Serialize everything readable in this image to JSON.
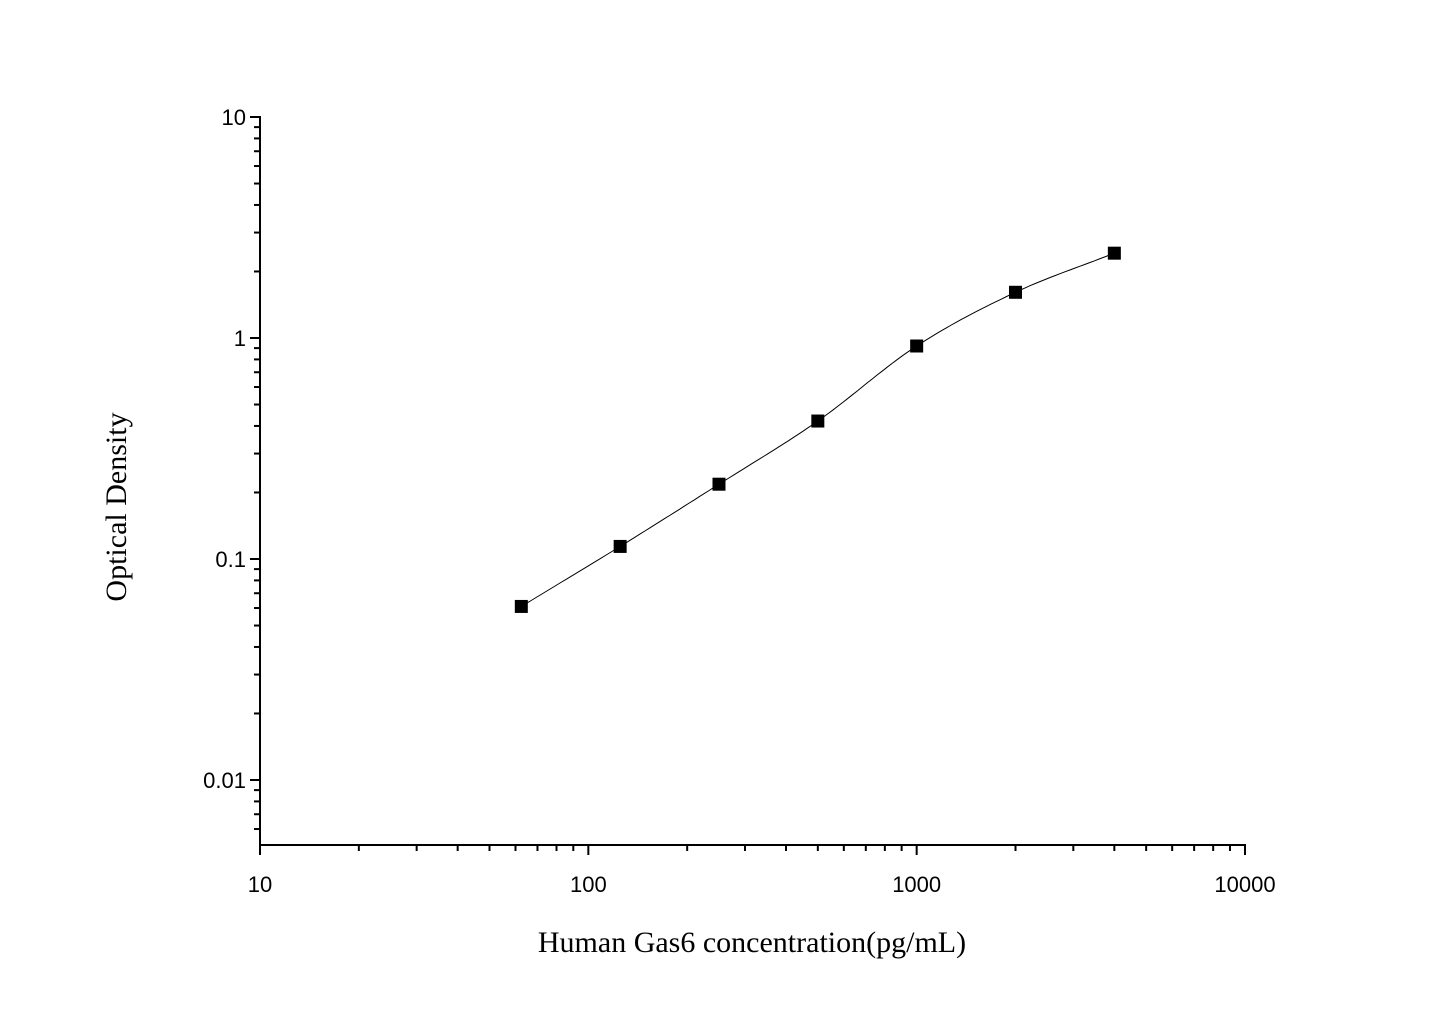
{
  "chart_data": {
    "type": "scatter",
    "title": "",
    "xlabel": "Human Gas6 concentration(pg/mL)",
    "ylabel": "Optical Density",
    "xscale": "log",
    "yscale": "log",
    "xlim": [
      10,
      10000
    ],
    "ylim": [
      0.005,
      10
    ],
    "xticks": [
      10,
      100,
      1000,
      10000
    ],
    "xtick_labels": [
      "10",
      "100",
      "1000",
      "10000"
    ],
    "yticks": [
      0.01,
      0.1,
      1,
      10
    ],
    "ytick_labels": [
      "0.01",
      "0.1",
      "1",
      "10"
    ],
    "grid": false,
    "legend": "none",
    "series": [
      {
        "x": [
          62.5,
          125,
          250,
          500,
          1000,
          2000,
          4000
        ],
        "y": [
          0.061,
          0.114,
          0.218,
          0.421,
          0.92,
          1.61,
          2.42
        ],
        "marker": "square",
        "color": "#000000",
        "fit_curve": true
      }
    ]
  }
}
